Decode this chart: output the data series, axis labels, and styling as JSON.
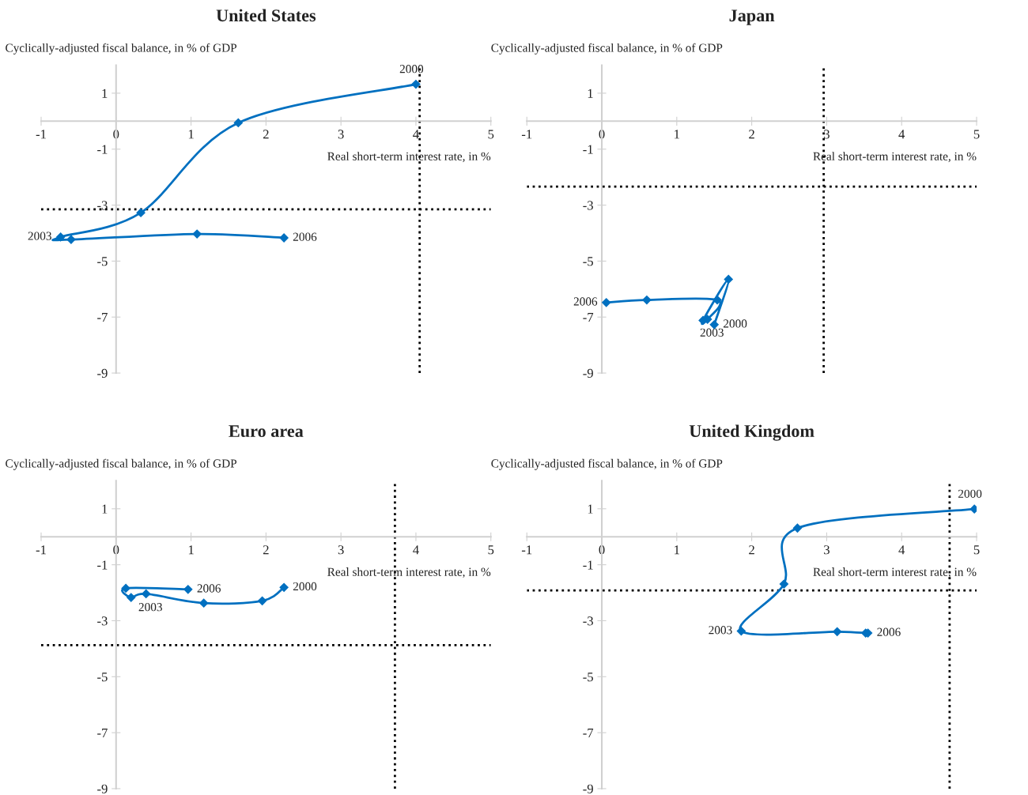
{
  "chart_data": [
    {
      "type": "line",
      "title": "United States",
      "ylabel": "Cyclically-adjusted fiscal balance, in % of GDP",
      "xlabel": "Real short-term interest rate, in %",
      "xlim": [
        -1,
        5
      ],
      "ylim": [
        -9,
        2
      ],
      "xticks": [
        -1,
        0,
        1,
        2,
        3,
        4,
        5
      ],
      "yticks": [
        -9,
        -7,
        -5,
        -3,
        -1,
        1
      ],
      "marker": "diamond",
      "line_style": "solid",
      "grid": false,
      "series": [
        {
          "color": "#0070c0",
          "x": [
            4.0,
            1.63,
            0.33,
            -0.74,
            -0.6,
            1.08,
            2.24
          ],
          "values": [
            1.32,
            -0.06,
            -3.27,
            -4.14,
            -4.23,
            -4.03,
            -4.17
          ]
        }
      ],
      "ref_lines": [
        {
          "axis": "x",
          "value": 4.05,
          "color": "#000000",
          "line_style": "dotted"
        },
        {
          "axis": "y",
          "value": -3.15,
          "color": "#000000",
          "line_style": "dotted"
        }
      ],
      "annotations": [
        {
          "text": "2000",
          "x": 4.0,
          "y": 1.32
        },
        {
          "text": "2003",
          "x": -0.74,
          "y": -4.14
        },
        {
          "text": "2006",
          "x": 2.24,
          "y": -4.17
        }
      ]
    },
    {
      "type": "line",
      "title": "Japan",
      "ylabel": "Cyclically-adjusted fiscal balance, in % of GDP",
      "xlabel": "Real short-term interest rate, in %",
      "xlim": [
        -1,
        5
      ],
      "ylim": [
        -9,
        2
      ],
      "xticks": [
        -1,
        0,
        1,
        2,
        3,
        4,
        5
      ],
      "yticks": [
        -9,
        -7,
        -5,
        -3,
        -1,
        1
      ],
      "marker": "diamond",
      "line_style": "solid",
      "grid": false,
      "series": [
        {
          "color": "#0070c0",
          "x": [
            1.5,
            1.69,
            1.35,
            1.41,
            1.54,
            0.6,
            0.06
          ],
          "values": [
            -7.27,
            -5.65,
            -7.12,
            -7.08,
            -6.39,
            -6.39,
            -6.48
          ]
        }
      ],
      "ref_lines": [
        {
          "axis": "x",
          "value": 2.96,
          "color": "#000000",
          "line_style": "dotted"
        },
        {
          "axis": "y",
          "value": -2.34,
          "color": "#000000",
          "line_style": "dotted"
        }
      ],
      "annotations": [
        {
          "text": "2000",
          "x": 1.5,
          "y": -7.27
        },
        {
          "text": "2003",
          "x": 1.41,
          "y": -7.08
        },
        {
          "text": "2006",
          "x": 0.06,
          "y": -6.48
        }
      ]
    },
    {
      "type": "line",
      "title": "Euro area",
      "ylabel": "Cyclically-adjusted fiscal balance, in % of GDP",
      "xlabel": "Real short-term interest rate, in %",
      "xlim": [
        -1,
        5
      ],
      "ylim": [
        -9,
        2
      ],
      "xticks": [
        -1,
        0,
        1,
        2,
        3,
        4,
        5
      ],
      "yticks": [
        -9,
        -7,
        -5,
        -3,
        -1,
        1
      ],
      "marker": "diamond",
      "line_style": "solid",
      "grid": false,
      "series": [
        {
          "color": "#0070c0",
          "x": [
            2.24,
            1.95,
            1.17,
            0.4,
            0.2,
            0.13,
            0.96
          ],
          "values": [
            -1.81,
            -2.29,
            -2.37,
            -2.04,
            -2.17,
            -1.84,
            -1.88
          ]
        }
      ],
      "ref_lines": [
        {
          "axis": "x",
          "value": 3.72,
          "color": "#000000",
          "line_style": "dotted"
        },
        {
          "axis": "y",
          "value": -3.87,
          "color": "#000000",
          "line_style": "dotted"
        }
      ],
      "annotations": [
        {
          "text": "2000",
          "x": 2.24,
          "y": -1.81
        },
        {
          "text": "2003",
          "x": 0.4,
          "y": -2.04
        },
        {
          "text": "2006",
          "x": 0.96,
          "y": -1.88
        }
      ]
    },
    {
      "type": "line",
      "title": "United Kingdom",
      "ylabel": "Cyclically-adjusted fiscal balance, in % of GDP",
      "xlabel": "Real short-term interest rate, in %",
      "xlim": [
        -1,
        5
      ],
      "ylim": [
        -9,
        2
      ],
      "xticks": [
        -1,
        0,
        1,
        2,
        3,
        4,
        5
      ],
      "yticks": [
        -9,
        -7,
        -5,
        -3,
        -1,
        1
      ],
      "marker": "diamond",
      "line_style": "solid",
      "grid": false,
      "series": [
        {
          "color": "#0070c0",
          "x": [
            4.97,
            2.61,
            2.43,
            1.86,
            3.14,
            3.52,
            3.55
          ],
          "values": [
            0.99,
            0.31,
            -1.69,
            -3.37,
            -3.39,
            -3.44,
            -3.44
          ]
        }
      ],
      "ref_lines": [
        {
          "axis": "x",
          "value": 4.64,
          "color": "#000000",
          "line_style": "dotted"
        },
        {
          "axis": "y",
          "value": -1.92,
          "color": "#000000",
          "line_style": "dotted"
        }
      ],
      "annotations": [
        {
          "text": "2000",
          "x": 4.97,
          "y": 0.99
        },
        {
          "text": "2003",
          "x": 1.86,
          "y": -3.37
        },
        {
          "text": "2006",
          "x": 3.55,
          "y": -3.44
        }
      ]
    }
  ]
}
